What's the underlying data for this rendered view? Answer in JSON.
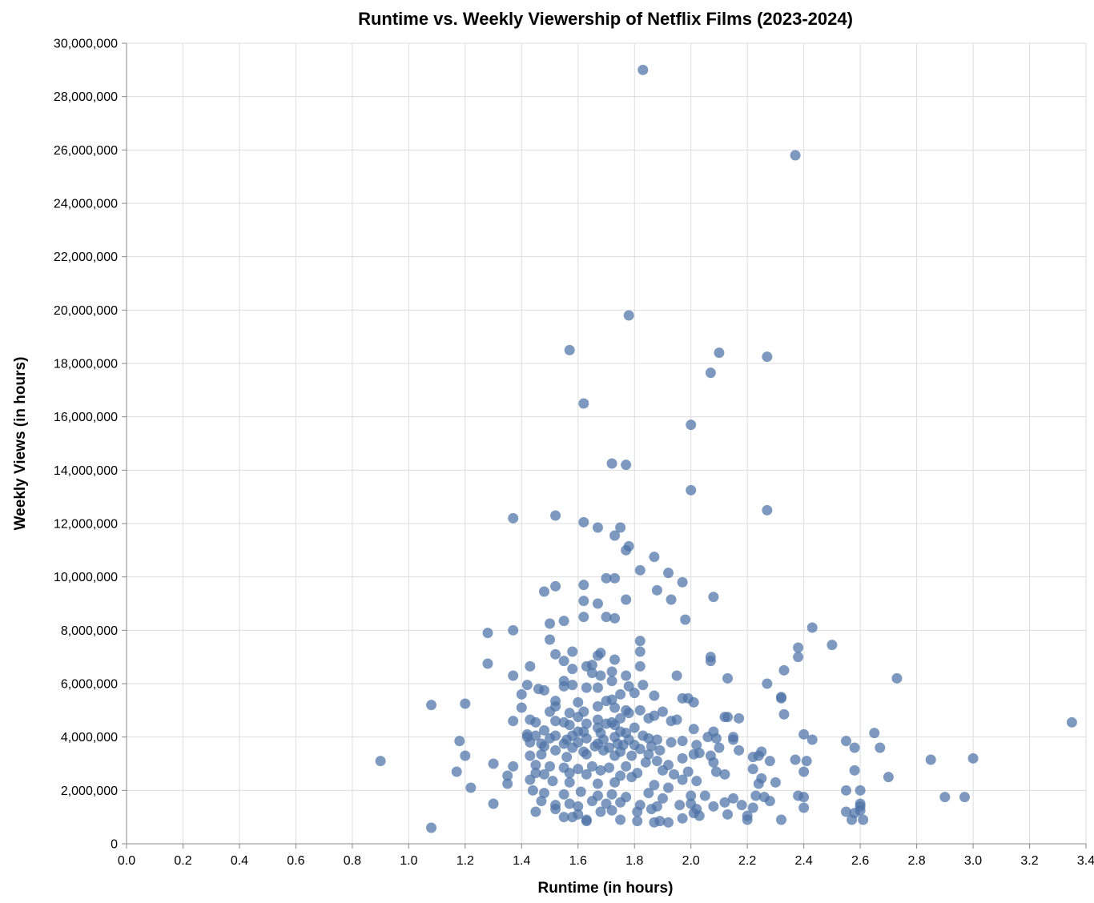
{
  "chart_data": {
    "type": "scatter",
    "title": "Runtime vs. Weekly Viewership of Netflix Films (2023-2024)",
    "xlabel": "Runtime (in hours)",
    "ylabel": "Weekly Views (in hours)",
    "xlim": [
      0,
      3.4
    ],
    "ylim": [
      0,
      30000000
    ],
    "xticks": [
      0.0,
      0.2,
      0.4,
      0.6,
      0.8,
      1.0,
      1.2,
      1.4,
      1.6,
      1.8,
      2.0,
      2.2,
      2.4,
      2.6,
      2.8,
      3.0,
      3.2,
      3.4
    ],
    "xtick_labels": [
      "0.0",
      "0.2",
      "0.4",
      "0.6",
      "0.8",
      "1.0",
      "1.2",
      "1.4",
      "1.6",
      "1.8",
      "2.0",
      "2.2",
      "2.4",
      "2.6",
      "2.8",
      "3.0",
      "3.2",
      "3.4"
    ],
    "yticks": [
      0,
      2000000,
      4000000,
      6000000,
      8000000,
      10000000,
      12000000,
      14000000,
      16000000,
      18000000,
      20000000,
      22000000,
      24000000,
      26000000,
      28000000,
      30000000
    ],
    "ytick_labels": [
      "0",
      "2,000,000",
      "4,000,000",
      "6,000,000",
      "8,000,000",
      "10,000,000",
      "12,000,000",
      "14,000,000",
      "16,000,000",
      "18,000,000",
      "20,000,000",
      "22,000,000",
      "24,000,000",
      "26,000,000",
      "28,000,000",
      "30,000,000"
    ],
    "grid": true,
    "point_color": "#4c72a6",
    "points": [
      [
        1.83,
        29000000
      ],
      [
        2.37,
        25800000
      ],
      [
        1.78,
        19800000
      ],
      [
        1.57,
        18500000
      ],
      [
        2.1,
        18400000
      ],
      [
        2.27,
        18250000
      ],
      [
        2.07,
        17650000
      ],
      [
        1.62,
        16500000
      ],
      [
        2.0,
        15700000
      ],
      [
        1.72,
        14250000
      ],
      [
        1.77,
        14200000
      ],
      [
        2.0,
        13250000
      ],
      [
        2.27,
        12500000
      ],
      [
        1.37,
        12200000
      ],
      [
        1.52,
        12300000
      ],
      [
        1.62,
        12050000
      ],
      [
        1.67,
        11850000
      ],
      [
        1.75,
        11850000
      ],
      [
        1.73,
        11550000
      ],
      [
        1.77,
        11000000
      ],
      [
        1.78,
        11150000
      ],
      [
        1.87,
        10750000
      ],
      [
        1.82,
        10250000
      ],
      [
        1.92,
        10150000
      ],
      [
        1.7,
        9950000
      ],
      [
        1.73,
        9950000
      ],
      [
        1.97,
        9800000
      ],
      [
        1.52,
        9650000
      ],
      [
        1.62,
        9700000
      ],
      [
        1.48,
        9450000
      ],
      [
        1.88,
        9500000
      ],
      [
        2.08,
        9250000
      ],
      [
        1.62,
        9100000
      ],
      [
        1.67,
        9000000
      ],
      [
        1.77,
        9150000
      ],
      [
        1.93,
        9150000
      ],
      [
        1.62,
        8500000
      ],
      [
        1.7,
        8500000
      ],
      [
        1.73,
        8450000
      ],
      [
        1.98,
        8400000
      ],
      [
        1.55,
        8350000
      ],
      [
        1.5,
        8250000
      ],
      [
        2.43,
        8100000
      ],
      [
        1.37,
        8000000
      ],
      [
        1.28,
        7900000
      ],
      [
        1.5,
        7650000
      ],
      [
        1.82,
        7600000
      ],
      [
        2.5,
        7450000
      ],
      [
        2.38,
        7350000
      ],
      [
        1.58,
        7200000
      ],
      [
        1.68,
        7150000
      ],
      [
        1.82,
        7200000
      ],
      [
        1.52,
        7100000
      ],
      [
        1.67,
        7050000
      ],
      [
        2.07,
        7000000
      ],
      [
        2.38,
        7000000
      ],
      [
        1.73,
        6900000
      ],
      [
        1.55,
        6850000
      ],
      [
        2.07,
        6850000
      ],
      [
        1.28,
        6750000
      ],
      [
        1.43,
        6650000
      ],
      [
        1.63,
        6650000
      ],
      [
        1.65,
        6700000
      ],
      [
        1.82,
        6650000
      ],
      [
        1.58,
        6550000
      ],
      [
        2.33,
        6500000
      ],
      [
        1.72,
        6450000
      ],
      [
        1.65,
        6400000
      ],
      [
        1.37,
        6300000
      ],
      [
        1.68,
        6300000
      ],
      [
        1.77,
        6300000
      ],
      [
        1.95,
        6300000
      ],
      [
        2.73,
        6200000
      ],
      [
        2.13,
        6200000
      ],
      [
        1.55,
        6100000
      ],
      [
        1.72,
        6100000
      ],
      [
        1.42,
        5950000
      ],
      [
        1.58,
        5950000
      ],
      [
        1.63,
        5850000
      ],
      [
        1.67,
        5850000
      ],
      [
        1.78,
        5900000
      ],
      [
        1.83,
        5950000
      ],
      [
        2.27,
        6000000
      ],
      [
        1.46,
        5800000
      ],
      [
        1.48,
        5750000
      ],
      [
        1.55,
        5900000
      ],
      [
        1.75,
        5600000
      ],
      [
        1.8,
        5650000
      ],
      [
        1.87,
        5550000
      ],
      [
        1.4,
        5600000
      ],
      [
        1.97,
        5450000
      ],
      [
        1.99,
        5450000
      ],
      [
        2.32,
        5500000
      ],
      [
        2.32,
        5450000
      ],
      [
        1.52,
        5350000
      ],
      [
        1.6,
        5300000
      ],
      [
        1.7,
        5350000
      ],
      [
        1.72,
        5400000
      ],
      [
        1.08,
        5200000
      ],
      [
        1.2,
        5250000
      ],
      [
        2.01,
        5300000
      ],
      [
        1.4,
        5100000
      ],
      [
        1.52,
        5150000
      ],
      [
        1.67,
        5150000
      ],
      [
        1.73,
        5100000
      ],
      [
        1.77,
        5000000
      ],
      [
        1.82,
        5000000
      ],
      [
        1.9,
        4950000
      ],
      [
        1.5,
        4950000
      ],
      [
        1.57,
        4900000
      ],
      [
        1.62,
        4950000
      ],
      [
        1.78,
        4900000
      ],
      [
        1.87,
        4800000
      ],
      [
        2.33,
        4850000
      ],
      [
        1.43,
        4650000
      ],
      [
        1.52,
        4600000
      ],
      [
        1.6,
        4750000
      ],
      [
        1.67,
        4650000
      ],
      [
        1.75,
        4700000
      ],
      [
        1.85,
        4700000
      ],
      [
        1.93,
        4600000
      ],
      [
        1.95,
        4650000
      ],
      [
        2.12,
        4750000
      ],
      [
        2.17,
        4700000
      ],
      [
        2.13,
        4750000
      ],
      [
        1.37,
        4600000
      ],
      [
        1.45,
        4550000
      ],
      [
        1.55,
        4550000
      ],
      [
        1.63,
        4500000
      ],
      [
        1.7,
        4500000
      ],
      [
        1.72,
        4550000
      ],
      [
        1.73,
        4450000
      ],
      [
        3.35,
        4550000
      ],
      [
        1.57,
        4450000
      ],
      [
        1.67,
        4350000
      ],
      [
        1.8,
        4350000
      ],
      [
        2.01,
        4300000
      ],
      [
        1.48,
        4250000
      ],
      [
        1.6,
        4200000
      ],
      [
        1.62,
        4200000
      ],
      [
        1.68,
        4150000
      ],
      [
        1.75,
        4200000
      ],
      [
        1.77,
        4150000
      ],
      [
        2.08,
        4200000
      ],
      [
        2.4,
        4100000
      ],
      [
        2.65,
        4150000
      ],
      [
        1.42,
        4100000
      ],
      [
        1.45,
        4050000
      ],
      [
        1.52,
        4050000
      ],
      [
        1.58,
        4050000
      ],
      [
        1.73,
        4000000
      ],
      [
        1.83,
        4050000
      ],
      [
        2.06,
        4000000
      ],
      [
        2.15,
        4000000
      ],
      [
        1.42,
        4000000
      ],
      [
        1.5,
        3950000
      ],
      [
        1.56,
        3900000
      ],
      [
        1.63,
        3950000
      ],
      [
        1.69,
        3900000
      ],
      [
        1.78,
        3900000
      ],
      [
        1.85,
        3950000
      ],
      [
        1.88,
        3900000
      ],
      [
        2.09,
        3950000
      ],
      [
        2.15,
        3900000
      ],
      [
        2.43,
        3900000
      ],
      [
        2.55,
        3850000
      ],
      [
        1.18,
        3850000
      ],
      [
        1.43,
        3800000
      ],
      [
        1.47,
        3750000
      ],
      [
        1.55,
        3750000
      ],
      [
        1.6,
        3800000
      ],
      [
        1.67,
        3750000
      ],
      [
        1.74,
        3750000
      ],
      [
        1.8,
        3700000
      ],
      [
        1.93,
        3800000
      ],
      [
        1.97,
        3850000
      ],
      [
        2.02,
        3700000
      ],
      [
        2.1,
        3600000
      ],
      [
        1.48,
        3650000
      ],
      [
        1.58,
        3600000
      ],
      [
        1.66,
        3650000
      ],
      [
        1.71,
        3600000
      ],
      [
        1.76,
        3700000
      ],
      [
        1.86,
        3650000
      ],
      [
        2.58,
        3600000
      ],
      [
        2.67,
        3600000
      ],
      [
        1.52,
        3500000
      ],
      [
        1.62,
        3450000
      ],
      [
        1.69,
        3500000
      ],
      [
        1.75,
        3450000
      ],
      [
        1.82,
        3550000
      ],
      [
        1.89,
        3500000
      ],
      [
        2.03,
        3400000
      ],
      [
        2.17,
        3500000
      ],
      [
        2.25,
        3450000
      ],
      [
        1.43,
        3300000
      ],
      [
        1.47,
        3350000
      ],
      [
        1.56,
        3250000
      ],
      [
        1.63,
        3350000
      ],
      [
        1.73,
        3300000
      ],
      [
        1.79,
        3300000
      ],
      [
        1.85,
        3350000
      ],
      [
        2.01,
        3350000
      ],
      [
        2.07,
        3300000
      ],
      [
        2.22,
        3250000
      ],
      [
        2.24,
        3300000
      ],
      [
        1.2,
        3300000
      ],
      [
        0.9,
        3100000
      ],
      [
        1.3,
        3000000
      ],
      [
        1.37,
        2900000
      ],
      [
        1.45,
        2950000
      ],
      [
        1.5,
        2900000
      ],
      [
        1.55,
        2850000
      ],
      [
        1.6,
        2800000
      ],
      [
        1.65,
        2900000
      ],
      [
        1.71,
        2850000
      ],
      [
        1.77,
        2900000
      ],
      [
        1.84,
        3050000
      ],
      [
        1.88,
        3100000
      ],
      [
        1.92,
        2950000
      ],
      [
        1.97,
        3200000
      ],
      [
        2.08,
        3050000
      ],
      [
        2.28,
        3100000
      ],
      [
        2.37,
        3150000
      ],
      [
        2.41,
        3100000
      ],
      [
        2.85,
        3150000
      ],
      [
        3.0,
        3200000
      ],
      [
        1.17,
        2700000
      ],
      [
        1.35,
        2550000
      ],
      [
        1.45,
        2650000
      ],
      [
        1.48,
        2600000
      ],
      [
        1.57,
        2650000
      ],
      [
        1.63,
        2600000
      ],
      [
        1.68,
        2750000
      ],
      [
        1.75,
        2550000
      ],
      [
        1.81,
        2650000
      ],
      [
        1.9,
        2750000
      ],
      [
        1.94,
        2600000
      ],
      [
        1.99,
        2700000
      ],
      [
        2.09,
        2700000
      ],
      [
        2.12,
        2600000
      ],
      [
        2.22,
        2800000
      ],
      [
        2.4,
        2700000
      ],
      [
        2.58,
        2750000
      ],
      [
        2.7,
        2500000
      ],
      [
        1.35,
        2250000
      ],
      [
        1.43,
        2400000
      ],
      [
        1.51,
        2350000
      ],
      [
        1.57,
        2300000
      ],
      [
        1.67,
        2250000
      ],
      [
        1.73,
        2300000
      ],
      [
        1.79,
        2500000
      ],
      [
        1.87,
        2200000
      ],
      [
        1.92,
        2100000
      ],
      [
        1.97,
        2400000
      ],
      [
        2.02,
        2350000
      ],
      [
        2.24,
        2250000
      ],
      [
        2.25,
        2450000
      ],
      [
        2.3,
        2300000
      ],
      [
        1.22,
        2100000
      ],
      [
        1.44,
        2000000
      ],
      [
        1.48,
        1900000
      ],
      [
        1.55,
        1850000
      ],
      [
        1.61,
        1950000
      ],
      [
        1.67,
        1800000
      ],
      [
        1.72,
        1850000
      ],
      [
        1.77,
        1750000
      ],
      [
        1.85,
        1900000
      ],
      [
        1.9,
        1700000
      ],
      [
        2.0,
        1800000
      ],
      [
        2.05,
        1800000
      ],
      [
        2.15,
        1700000
      ],
      [
        2.23,
        1800000
      ],
      [
        2.26,
        1750000
      ],
      [
        2.38,
        1800000
      ],
      [
        2.4,
        1750000
      ],
      [
        2.55,
        2000000
      ],
      [
        2.6,
        2000000
      ],
      [
        2.9,
        1750000
      ],
      [
        2.97,
        1750000
      ],
      [
        1.3,
        1500000
      ],
      [
        1.47,
        1600000
      ],
      [
        1.52,
        1450000
      ],
      [
        1.57,
        1500000
      ],
      [
        1.6,
        1400000
      ],
      [
        1.65,
        1600000
      ],
      [
        1.7,
        1500000
      ],
      [
        1.75,
        1550000
      ],
      [
        1.82,
        1450000
      ],
      [
        1.88,
        1400000
      ],
      [
        1.96,
        1450000
      ],
      [
        2.0,
        1500000
      ],
      [
        2.08,
        1400000
      ],
      [
        2.12,
        1550000
      ],
      [
        2.18,
        1450000
      ],
      [
        2.28,
        1600000
      ],
      [
        2.4,
        1350000
      ],
      [
        2.6,
        1400000
      ],
      [
        2.6,
        1500000
      ],
      [
        1.45,
        1200000
      ],
      [
        1.52,
        1300000
      ],
      [
        1.55,
        1000000
      ],
      [
        1.6,
        1100000
      ],
      [
        1.63,
        900000
      ],
      [
        1.68,
        1200000
      ],
      [
        1.72,
        1250000
      ],
      [
        1.75,
        900000
      ],
      [
        1.81,
        1200000
      ],
      [
        1.86,
        1300000
      ],
      [
        1.89,
        850000
      ],
      [
        1.92,
        800000
      ],
      [
        1.97,
        950000
      ],
      [
        2.01,
        1150000
      ],
      [
        2.03,
        1050000
      ],
      [
        2.13,
        1100000
      ],
      [
        2.2,
        900000
      ],
      [
        2.32,
        900000
      ],
      [
        2.55,
        1200000
      ],
      [
        2.57,
        900000
      ],
      [
        2.58,
        1150000
      ],
      [
        2.61,
        900000
      ],
      [
        1.08,
        600000
      ],
      [
        1.81,
        850000
      ],
      [
        1.87,
        800000
      ],
      [
        1.63,
        850000
      ],
      [
        2.2,
        1050000
      ],
      [
        2.6,
        1250000
      ],
      [
        2.22,
        1350000
      ],
      [
        2.02,
        1300000
      ],
      [
        1.58,
        1000000
      ]
    ]
  }
}
